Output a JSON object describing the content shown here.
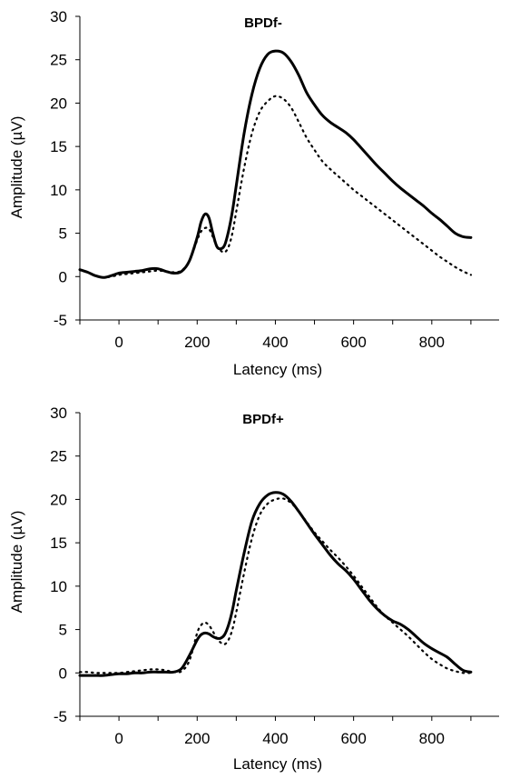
{
  "chart_data": [
    {
      "type": "line",
      "title": "BPDf-",
      "xlabel": "Latency (ms)",
      "ylabel": "Amplitude (µV)",
      "xlim": [
        -100,
        1000
      ],
      "ylim": [
        -5,
        30
      ],
      "xticks": [
        0,
        200,
        400,
        600,
        800
      ],
      "yticks": [
        -5,
        0,
        5,
        10,
        15,
        20,
        25,
        30
      ],
      "grid": false,
      "legend": "none",
      "series": [
        {
          "line_style": "solid",
          "color": "#000000",
          "x": [
            -100,
            -80,
            -60,
            -40,
            -20,
            0,
            20,
            40,
            60,
            80,
            100,
            120,
            140,
            160,
            180,
            200,
            210,
            220,
            230,
            240,
            250,
            260,
            270,
            280,
            290,
            300,
            320,
            340,
            360,
            380,
            400,
            420,
            440,
            460,
            480,
            500,
            520,
            540,
            560,
            580,
            600,
            620,
            640,
            660,
            680,
            700,
            720,
            740,
            760,
            780,
            800,
            820,
            840,
            860,
            880,
            900
          ],
          "y": [
            0.8,
            0.5,
            0.1,
            -0.1,
            0.1,
            0.4,
            0.5,
            0.6,
            0.7,
            0.9,
            0.9,
            0.6,
            0.4,
            0.6,
            1.8,
            4.5,
            6.3,
            7.2,
            6.8,
            5.0,
            3.5,
            3.2,
            3.6,
            5.2,
            7.5,
            10.5,
            16.5,
            21.0,
            24.0,
            25.6,
            26.0,
            25.8,
            24.8,
            23.2,
            21.2,
            19.8,
            18.6,
            17.8,
            17.2,
            16.6,
            15.8,
            14.8,
            13.8,
            12.8,
            11.9,
            11.0,
            10.2,
            9.5,
            8.8,
            8.1,
            7.3,
            6.6,
            5.8,
            5.0,
            4.6,
            4.5
          ]
        },
        {
          "line_style": "dotted",
          "color": "#000000",
          "x": [
            -100,
            -80,
            -60,
            -40,
            -20,
            0,
            20,
            40,
            60,
            80,
            100,
            120,
            140,
            160,
            180,
            200,
            210,
            220,
            230,
            240,
            250,
            260,
            270,
            280,
            290,
            300,
            320,
            340,
            360,
            380,
            400,
            420,
            440,
            460,
            480,
            500,
            520,
            540,
            560,
            580,
            600,
            620,
            640,
            660,
            680,
            700,
            720,
            740,
            760,
            780,
            800,
            820,
            840,
            860,
            880,
            900
          ],
          "y": [
            0.8,
            0.5,
            0.1,
            -0.1,
            0.0,
            0.2,
            0.3,
            0.4,
            0.5,
            0.6,
            0.7,
            0.6,
            0.5,
            0.7,
            1.8,
            4.2,
            5.2,
            5.6,
            5.5,
            4.6,
            3.5,
            3.0,
            2.8,
            3.4,
            5.0,
            7.5,
            12.5,
            16.5,
            19.0,
            20.2,
            20.8,
            20.5,
            19.5,
            17.8,
            16.0,
            14.6,
            13.3,
            12.4,
            11.6,
            10.8,
            10.0,
            9.3,
            8.6,
            7.9,
            7.2,
            6.5,
            5.8,
            5.1,
            4.4,
            3.7,
            3.0,
            2.3,
            1.7,
            1.1,
            0.6,
            0.2
          ]
        }
      ]
    },
    {
      "type": "line",
      "title": "BPDf+",
      "xlabel": "Latency (ms)",
      "ylabel": "Amplitude (µV)",
      "xlim": [
        -100,
        1000
      ],
      "ylim": [
        -5,
        30
      ],
      "xticks": [
        0,
        200,
        400,
        600,
        800
      ],
      "yticks": [
        -5,
        0,
        5,
        10,
        15,
        20,
        25,
        30
      ],
      "grid": false,
      "legend": "none",
      "series": [
        {
          "line_style": "solid",
          "color": "#000000",
          "x": [
            -100,
            -80,
            -60,
            -40,
            -20,
            0,
            20,
            40,
            60,
            80,
            100,
            120,
            140,
            160,
            180,
            200,
            210,
            220,
            230,
            240,
            250,
            260,
            270,
            280,
            290,
            300,
            320,
            340,
            360,
            380,
            400,
            420,
            440,
            460,
            480,
            500,
            520,
            540,
            560,
            580,
            600,
            620,
            640,
            660,
            680,
            700,
            720,
            740,
            760,
            780,
            800,
            820,
            840,
            860,
            880,
            900
          ],
          "y": [
            -0.3,
            -0.3,
            -0.3,
            -0.3,
            -0.2,
            -0.1,
            -0.1,
            0.0,
            0.0,
            0.1,
            0.1,
            0.1,
            0.1,
            0.5,
            2.0,
            3.8,
            4.4,
            4.6,
            4.5,
            4.2,
            4.0,
            4.0,
            4.4,
            5.5,
            7.2,
            9.5,
            13.8,
            17.5,
            19.5,
            20.5,
            20.8,
            20.6,
            19.8,
            18.6,
            17.3,
            16.0,
            14.8,
            13.6,
            12.6,
            11.8,
            10.8,
            9.6,
            8.4,
            7.4,
            6.6,
            6.0,
            5.6,
            5.0,
            4.2,
            3.4,
            2.8,
            2.3,
            1.8,
            1.0,
            0.3,
            0.1
          ]
        },
        {
          "line_style": "dotted",
          "color": "#000000",
          "x": [
            -100,
            -80,
            -60,
            -40,
            -20,
            0,
            20,
            40,
            60,
            80,
            100,
            120,
            140,
            160,
            180,
            200,
            210,
            220,
            230,
            240,
            250,
            260,
            270,
            280,
            290,
            300,
            320,
            340,
            360,
            380,
            400,
            420,
            440,
            460,
            480,
            500,
            520,
            540,
            560,
            580,
            600,
            620,
            640,
            660,
            680,
            700,
            720,
            740,
            760,
            780,
            800,
            820,
            840,
            860,
            880,
            900
          ],
          "y": [
            0.1,
            0.1,
            0.0,
            0.0,
            0.0,
            0.0,
            0.1,
            0.2,
            0.3,
            0.4,
            0.4,
            0.3,
            0.1,
            0.2,
            1.4,
            4.6,
            5.5,
            5.8,
            5.5,
            4.8,
            4.0,
            3.5,
            3.3,
            3.8,
            5.0,
            7.0,
            11.5,
            15.5,
            18.2,
            19.5,
            20.0,
            20.1,
            19.6,
            18.6,
            17.4,
            16.2,
            15.2,
            14.2,
            13.3,
            12.3,
            11.2,
            10.0,
            8.8,
            7.6,
            6.6,
            5.8,
            5.0,
            4.2,
            3.3,
            2.4,
            1.6,
            1.0,
            0.5,
            0.2,
            0.0,
            0.0
          ]
        }
      ]
    }
  ]
}
